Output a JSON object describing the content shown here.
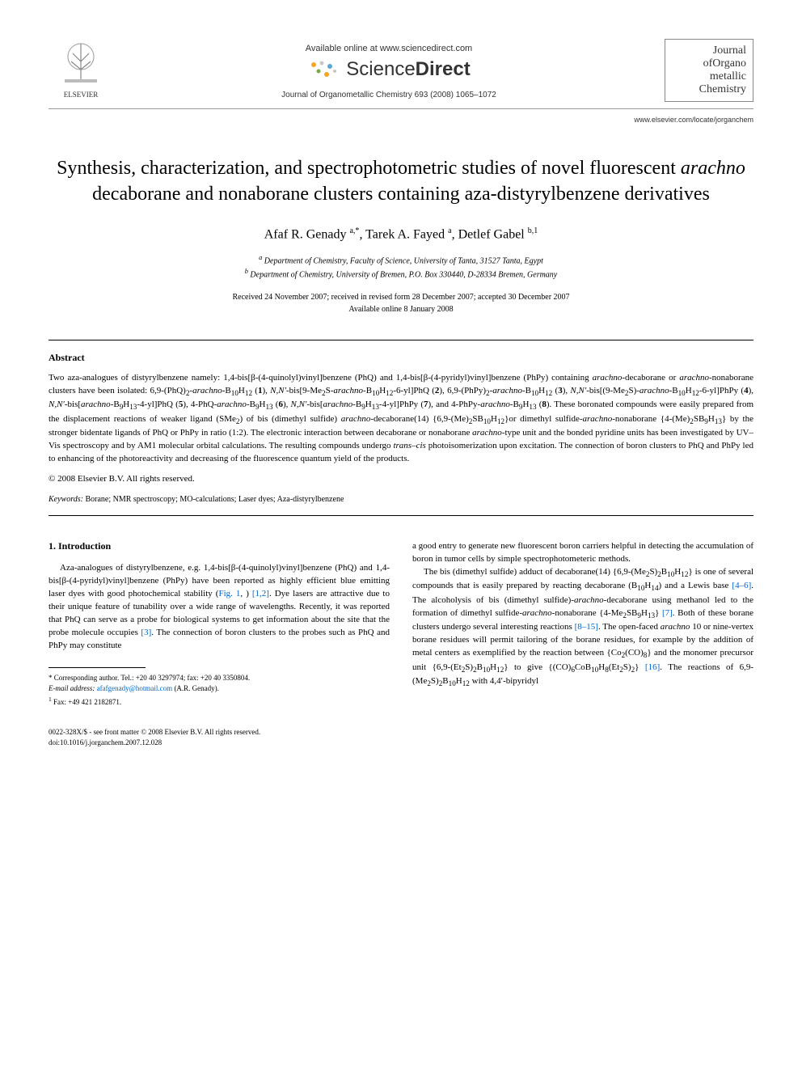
{
  "header": {
    "publisher_name": "ELSEVIER",
    "available_online": "Available online at www.sciencedirect.com",
    "sciencedirect_light": "Science",
    "sciencedirect_bold": "Direct",
    "journal_ref": "Journal of Organometallic Chemistry 693 (2008) 1065–1072",
    "journal_logo_l1": "Journal",
    "journal_logo_l2": "ofOrgano",
    "journal_logo_l3": "metallic",
    "journal_logo_l4": "Chemistry",
    "journal_url": "www.elsevier.com/locate/jorganchem"
  },
  "title": {
    "pre": "Synthesis, characterization, and spectrophotometric studies of novel fluorescent ",
    "italic": "arachno",
    "post": " decaborane and nonaborane clusters containing aza-distyrylbenzene derivatives"
  },
  "authors_html": "Afaf R. Genady <sup>a,*</sup>, Tarek A. Fayed <sup>a</sup>, Detlef Gabel <sup>b,1</sup>",
  "affiliations": {
    "a": "a Department of Chemistry, Faculty of Science, University of Tanta, 31527 Tanta, Egypt",
    "b": "b Department of Chemistry, University of Bremen, P.O. Box 330440, D-28334 Bremen, Germany"
  },
  "dates": {
    "received": "Received 24 November 2007; received in revised form 28 December 2007; accepted 30 December 2007",
    "online": "Available online 8 January 2008"
  },
  "abstract": {
    "heading": "Abstract",
    "body_html": "Two aza-analogues of distyrylbenzene namely: 1,4-bis[β-(4-quinolyl)vinyl]benzene (PhQ) and 1,4-bis[β-(4-pyridyl)vinyl]benzene (PhPy) containing <span class=\"italic\">arachno</span>-decaborane or <span class=\"italic\">arachno</span>-nonaborane clusters have been isolated: 6,9-(PhQ)<sub>2</sub>-<span class=\"italic\">arachno</span>-B<sub>10</sub>H<sub>12</sub> (<b>1</b>), <span class=\"italic\">N,N′</span>-bis[9-Me<sub>2</sub>S-<span class=\"italic\">arachno</span>-B<sub>10</sub>H<sub>12</sub>-6-yl]PhQ (<b>2</b>), 6,9-(PhPy)<sub>2</sub>-<span class=\"italic\">arachno</span>-B<sub>10</sub>H<sub>12</sub> (<b>3</b>), <span class=\"italic\">N,N′</span>-bis[(9-Me<sub>2</sub>S)-<span class=\"italic\">arachno</span>-B<sub>10</sub>H<sub>12</sub>-6-yl]PhPy (<b>4</b>), <span class=\"italic\">N,N′</span>-bis[<span class=\"italic\">arachno</span>-B<sub>9</sub>H<sub>13</sub>-4-yl]PhQ (<b>5</b>), 4-PhQ-<span class=\"italic\">arachno</span>-B<sub>9</sub>H<sub>13</sub> (<b>6</b>), <span class=\"italic\">N,N′</span>-bis[<span class=\"italic\">arachno</span>-B<sub>9</sub>H<sub>13</sub>-4-yl]PhPy (<b>7</b>), and 4-PhPy-<span class=\"italic\">arachno</span>-B<sub>9</sub>H<sub>13</sub> (<b>8</b>). These boronated compounds were easily prepared from the displacement reactions of weaker ligand (SMe<sub>2</sub>) of bis (dimethyl sulfide) <span class=\"italic\">arachno</span>-decaborane(14) {6,9-(Me)<sub>2</sub>SB<sub>10</sub>H<sub>12</sub>}or dimethyl sulfide-<span class=\"italic\">arachno</span>-nonaborane {4-(Me)<sub>2</sub>SB<sub>9</sub>H<sub>13</sub>} by the stronger bidentate ligands of PhQ or PhPy in ratio (1:2). The electronic interaction between decaborane or nonaborane <span class=\"italic\">arachno</span>-type unit and the bonded pyridine units has been investigated by UV–Vis spectroscopy and by AM1 molecular orbital calculations. The resulting compounds undergo <span class=\"italic\">trans–cis</span> photoisomerization upon excitation. The connection of boron clusters to PhQ and PhPy led to enhancing of the photoreactivity and decreasing of the fluorescence quantum yield of the products.",
    "copyright": "© 2008 Elsevier B.V. All rights reserved."
  },
  "keywords": {
    "label": "Keywords:",
    "text": " Borane; NMR spectroscopy; MO-calculations; Laser dyes; Aza-distyrylbenzene"
  },
  "intro": {
    "heading": "1. Introduction",
    "col1_html": "Aza-analogues of distyrylbenzene, e.g. 1,4-bis[β-(4-quinolyl)vinyl]benzene (PhQ) and 1,4-bis[β-(4-pyridyl)vinyl]benzene (PhPy) have been reported as highly efficient blue emitting laser dyes with good photochemical stability (<span class=\"ref\">Fig. 1</span>, ) <span class=\"ref\">[1,2]</span>. Dye lasers are attractive due to their unique feature of tunability over a wide range of wavelengths. Recently, it was reported that PhQ can serve as a probe for biological systems to get information about the site that the probe molecule occupies <span class=\"ref\">[3]</span>. The connection of boron clusters to the probes such as PhQ and PhPy may constitute",
    "col2_html": "a good entry to generate new fluorescent boron carriers helpful in detecting the accumulation of boron in tumor cells by simple spectrophotometeric methods.</p><p class=\"body-text\">The bis (dimethyl sulfide) adduct of decaborane(14) {6,9-(Me<sub>2</sub>S)<sub>2</sub>B<sub>10</sub>H<sub>12</sub>} is one of several compounds that is easily prepared by reacting decaborane (B<sub>10</sub>H<sub>14</sub>) and a Lewis base <span class=\"ref\">[4–6]</span>. The alcoholysis of bis (dimethyl sulfide)-<span class=\"italic\">arachno</span>-decaborane using methanol led to the formation of dimethyl sulfide-<span class=\"italic\">arachno</span>-nonaborane {4-Me<sub>2</sub>SB<sub>9</sub>H<sub>13</sub>} <span class=\"ref\">[7]</span>. Both of these borane clusters undergo several interesting reactions <span class=\"ref\">[8–15]</span>. The open-faced <span class=\"italic\">arachno</span> 10 or nine-vertex borane residues will permit tailoring of the borane residues, for example by the addition of metal centers as exemplified by the reaction between {Co<sub>2</sub>(CO)<sub>8</sub>} and the monomer precursor unit {6,9-(Et<sub>2</sub>S)<sub>2</sub>B<sub>10</sub>H<sub>12</sub>} to give {(CO)<sub>6</sub>CoB<sub>10</sub>H<sub>8</sub>(Et<sub>2</sub>S)<sub>2</sub>} <span class=\"ref\">[16]</span>. The reactions of 6,9-(Me<sub>2</sub>S)<sub>2</sub>B<sub>10</sub>H<sub>12</sub> with 4,4′-bipyridyl"
  },
  "footnotes": {
    "corresponding": "* Corresponding author. Tel.: +20 40 3297974; fax: +20 40 3350804.",
    "email_label": "E-mail address:",
    "email": "afafgenady@hotmail.com",
    "email_tail": " (A.R. Genady).",
    "fax": "1 Fax: +49 421 2182871."
  },
  "bottom": {
    "line1": "0022-328X/$ - see front matter © 2008 Elsevier B.V. All rights reserved.",
    "line2": "doi:10.1016/j.jorganchem.2007.12.028"
  },
  "colors": {
    "link": "#0066cc",
    "text": "#000000",
    "rule": "#000000",
    "sd_orange": "#f5a623",
    "elsevier_orange": "#e67817"
  }
}
